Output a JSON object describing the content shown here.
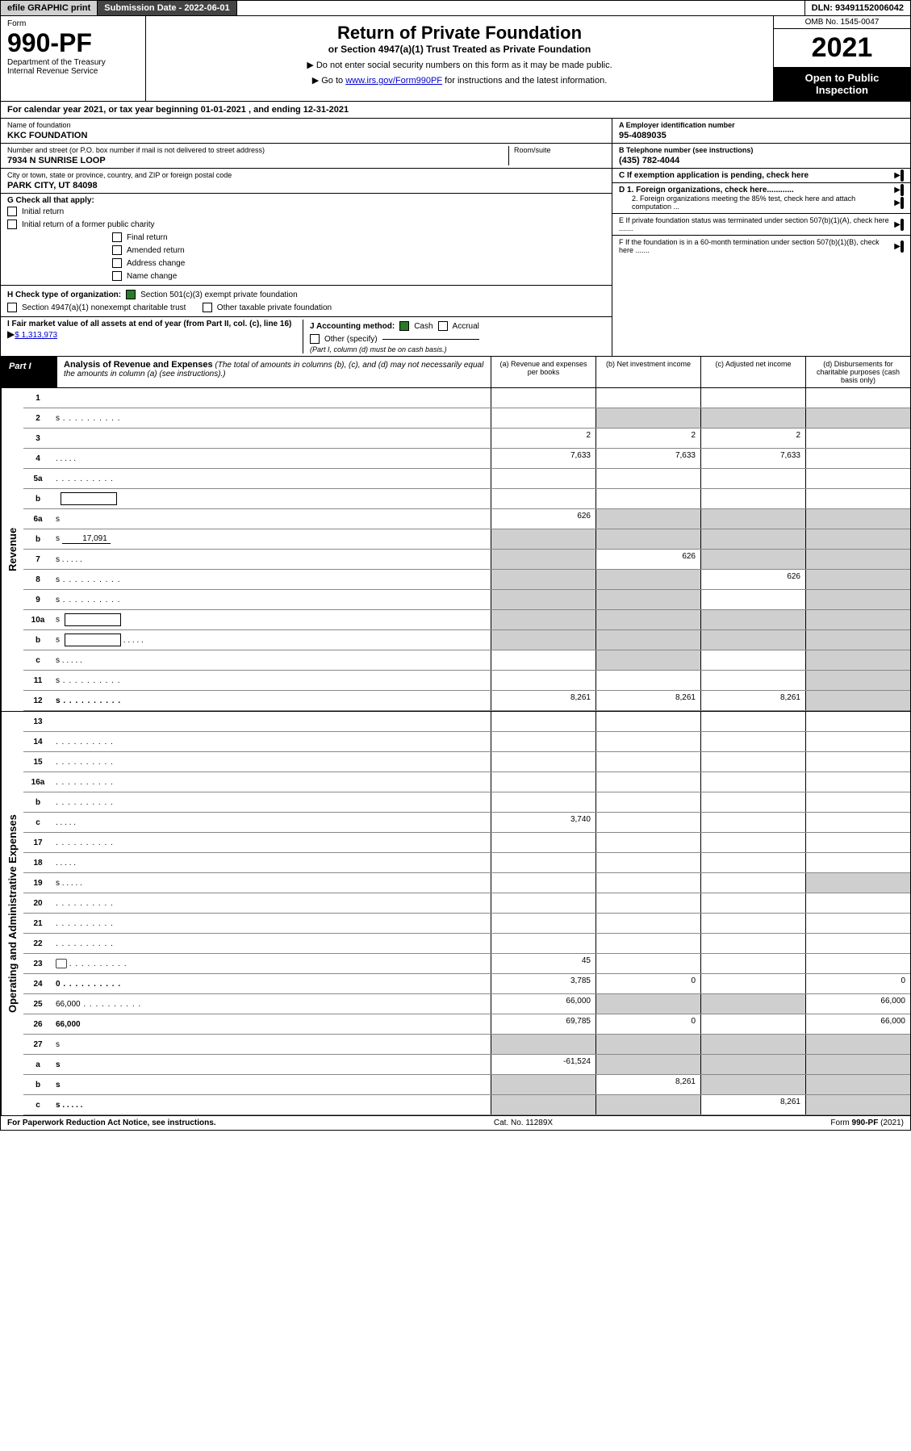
{
  "topbar": {
    "efile": "efile GRAPHIC print",
    "submission": "Submission Date - 2022-06-01",
    "dln": "DLN: 93491152006042"
  },
  "header": {
    "form_word": "Form",
    "form_num": "990-PF",
    "dept": "Department of the Treasury",
    "irs": "Internal Revenue Service",
    "title": "Return of Private Foundation",
    "subtitle": "or Section 4947(a)(1) Trust Treated as Private Foundation",
    "instr1": "▶ Do not enter social security numbers on this form as it may be made public.",
    "instr2_pre": "▶ Go to ",
    "instr2_link": "www.irs.gov/Form990PF",
    "instr2_post": " for instructions and the latest information.",
    "omb": "OMB No. 1545-0047",
    "year": "2021",
    "open": "Open to Public Inspection"
  },
  "calyear": "For calendar year 2021, or tax year beginning 01-01-2021               , and ending 12-31-2021",
  "meta": {
    "name_lbl": "Name of foundation",
    "name": "KKC FOUNDATION",
    "addr_lbl": "Number and street (or P.O. box number if mail is not delivered to street address)",
    "room_lbl": "Room/suite",
    "addr": "7934 N SUNRISE LOOP",
    "city_lbl": "City or town, state or province, country, and ZIP or foreign postal code",
    "city": "PARK CITY, UT  84098",
    "ein_lbl": "A Employer identification number",
    "ein": "95-4089035",
    "tel_lbl": "B Telephone number (see instructions)",
    "tel": "(435) 782-4044",
    "c_lbl": "C If exemption application is pending, check here",
    "d1": "D 1. Foreign organizations, check here............",
    "d2": "2. Foreign organizations meeting the 85% test, check here and attach computation ...",
    "e": "E  If private foundation status was terminated under section 507(b)(1)(A), check here .......",
    "f": "F  If the foundation is in a 60-month termination under section 507(b)(1)(B), check here .......",
    "g_lbl": "G Check all that apply:",
    "g_initial": "Initial return",
    "g_initial_former": "Initial return of a former public charity",
    "g_final": "Final return",
    "g_amended": "Amended return",
    "g_addr": "Address change",
    "g_name": "Name change",
    "h_lbl": "H Check type of organization:",
    "h_501c3": "Section 501(c)(3) exempt private foundation",
    "h_4947": "Section 4947(a)(1) nonexempt charitable trust",
    "h_other": "Other taxable private foundation",
    "i_lbl": "I Fair market value of all assets at end of year (from Part II, col. (c), line 16)",
    "i_val": "$  1,313,973",
    "j_lbl": "J Accounting method:",
    "j_cash": "Cash",
    "j_accrual": "Accrual",
    "j_other": "Other (specify)",
    "j_note": "(Part I, column (d) must be on cash basis.)"
  },
  "part1": {
    "label": "Part I",
    "title": "Analysis of Revenue and Expenses",
    "note": "(The total of amounts in columns (b), (c), and (d) may not necessarily equal the amounts in column (a) (see instructions).)",
    "col_a": "(a)   Revenue and expenses per books",
    "col_b": "(b)   Net investment income",
    "col_c": "(c)   Adjusted net income",
    "col_d": "(d)  Disbursements for charitable purposes (cash basis only)"
  },
  "sections": {
    "revenue": "Revenue",
    "expenses": "Operating and Administrative Expenses"
  },
  "rows": [
    {
      "n": "1",
      "d": "",
      "a": "",
      "b": "",
      "c": ""
    },
    {
      "n": "2",
      "d": "s",
      "dots": true,
      "a": "",
      "b": "s",
      "c": "s"
    },
    {
      "n": "3",
      "d": "",
      "a": "2",
      "b": "2",
      "c": "2"
    },
    {
      "n": "4",
      "d": "",
      "dots": "sm",
      "a": "7,633",
      "b": "7,633",
      "c": "7,633"
    },
    {
      "n": "5a",
      "d": "",
      "dots": true,
      "a": "",
      "b": "",
      "c": ""
    },
    {
      "n": "b",
      "d": "",
      "box": true,
      "a": "",
      "b": "",
      "c": ""
    },
    {
      "n": "6a",
      "d": "s",
      "a": "626",
      "b": "s",
      "c": "s"
    },
    {
      "n": "b",
      "d": "s",
      "inline": "17,091",
      "a": "s",
      "b": "s",
      "c": "s"
    },
    {
      "n": "7",
      "d": "s",
      "dots": "sm",
      "a": "s",
      "b": "626",
      "c": "s"
    },
    {
      "n": "8",
      "d": "s",
      "dots": true,
      "a": "s",
      "b": "s",
      "c": "626"
    },
    {
      "n": "9",
      "d": "s",
      "dots": true,
      "a": "s",
      "b": "s",
      "c": ""
    },
    {
      "n": "10a",
      "d": "s",
      "box": true,
      "a": "s",
      "b": "s",
      "c": "s"
    },
    {
      "n": "b",
      "d": "s",
      "dots": "sm",
      "box": true,
      "a": "s",
      "b": "s",
      "c": "s"
    },
    {
      "n": "c",
      "d": "s",
      "dots": "sm",
      "a": "",
      "b": "s",
      "c": ""
    },
    {
      "n": "11",
      "d": "s",
      "dots": true,
      "a": "",
      "b": "",
      "c": ""
    },
    {
      "n": "12",
      "d": "s",
      "bold": true,
      "dots": true,
      "a": "8,261",
      "b": "8,261",
      "c": "8,261"
    }
  ],
  "exp_rows": [
    {
      "n": "13",
      "d": "",
      "a": "",
      "b": "",
      "c": ""
    },
    {
      "n": "14",
      "d": "",
      "dots": true,
      "a": "",
      "b": "",
      "c": ""
    },
    {
      "n": "15",
      "d": "",
      "dots": true,
      "a": "",
      "b": "",
      "c": ""
    },
    {
      "n": "16a",
      "d": "",
      "dots": true,
      "a": "",
      "b": "",
      "c": ""
    },
    {
      "n": "b",
      "d": "",
      "dots": true,
      "a": "",
      "b": "",
      "c": ""
    },
    {
      "n": "c",
      "d": "",
      "dots": "sm",
      "a": "3,740",
      "b": "",
      "c": ""
    },
    {
      "n": "17",
      "d": "",
      "dots": true,
      "a": "",
      "b": "",
      "c": ""
    },
    {
      "n": "18",
      "d": "",
      "dots": "sm",
      "a": "",
      "b": "",
      "c": ""
    },
    {
      "n": "19",
      "d": "s",
      "dots": "sm",
      "a": "",
      "b": "",
      "c": ""
    },
    {
      "n": "20",
      "d": "",
      "dots": true,
      "a": "",
      "b": "",
      "c": ""
    },
    {
      "n": "21",
      "d": "",
      "dots": true,
      "a": "",
      "b": "",
      "c": ""
    },
    {
      "n": "22",
      "d": "",
      "dots": true,
      "a": "",
      "b": "",
      "c": ""
    },
    {
      "n": "23",
      "d": "",
      "dots": true,
      "icon": true,
      "a": "45",
      "b": "",
      "c": ""
    },
    {
      "n": "24",
      "d": "0",
      "bold": true,
      "dots": true,
      "a": "3,785",
      "b": "0",
      "c": ""
    },
    {
      "n": "25",
      "d": "66,000",
      "dots": true,
      "a": "66,000",
      "b": "s",
      "c": "s"
    },
    {
      "n": "26",
      "d": "66,000",
      "bold": true,
      "a": "69,785",
      "b": "0",
      "c": ""
    },
    {
      "n": "27",
      "d": "s",
      "a": "s",
      "b": "s",
      "c": "s"
    },
    {
      "n": "a",
      "d": "s",
      "bold": true,
      "a": "-61,524",
      "b": "s",
      "c": "s"
    },
    {
      "n": "b",
      "d": "s",
      "bold": true,
      "a": "s",
      "b": "8,261",
      "c": "s"
    },
    {
      "n": "c",
      "d": "s",
      "bold": true,
      "dots": "sm",
      "a": "s",
      "b": "s",
      "c": "8,261"
    }
  ],
  "footer": {
    "left": "For Paperwork Reduction Act Notice, see instructions.",
    "mid": "Cat. No. 11289X",
    "right": "Form 990-PF (2021)"
  }
}
